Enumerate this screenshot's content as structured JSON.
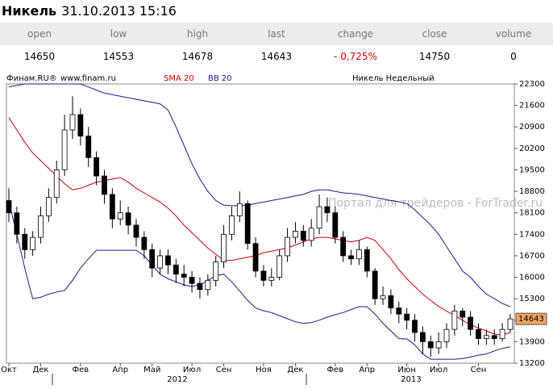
{
  "quote": {
    "title": "Никель",
    "datetime": "31.10.2013 15:16",
    "columns": [
      "open",
      "low",
      "high",
      "last",
      "change",
      "close",
      "volume"
    ],
    "values": [
      14650,
      14553,
      14678,
      14643,
      "- 0,725%",
      14750,
      0
    ]
  },
  "chart_data": {
    "type": "candlestick",
    "title": "Никель Недельный",
    "source": "Финам.RU®",
    "url": "www.finam.ru",
    "watermark": "Портал для трейдеров - ForTrader.ru",
    "years": [
      "2012",
      "2013"
    ],
    "categories": [
      "Окт",
      null,
      null,
      null,
      "Дек",
      null,
      null,
      null,
      null,
      "Фев",
      null,
      null,
      null,
      null,
      "Апр",
      null,
      null,
      null,
      "Май",
      null,
      null,
      null,
      null,
      "Июл",
      null,
      null,
      null,
      "Сен",
      null,
      null,
      null,
      null,
      "Ноя",
      null,
      null,
      null,
      "Дек",
      null,
      null,
      null,
      null,
      "Фев",
      null,
      null,
      null,
      "Апр",
      null,
      null,
      null,
      null,
      "Июн",
      null,
      null,
      null,
      "Июл",
      null,
      null,
      null,
      null,
      "Сен",
      null,
      null,
      null,
      null
    ],
    "open": [
      18500,
      18100,
      17400,
      16900,
      17300,
      18000,
      18600,
      19500,
      20800,
      21300,
      20600,
      19900,
      19300,
      18700,
      17900,
      18100,
      17700,
      17300,
      16900,
      16300,
      16700,
      16400,
      16100,
      16000,
      15800,
      15600,
      15900,
      16500,
      17400,
      18000,
      18400,
      17100,
      16200,
      15900,
      16000,
      16700,
      17300,
      17500,
      17200,
      17600,
      18300,
      18100,
      17300,
      16700,
      16600,
      16900,
      16200,
      15300,
      15400,
      15000,
      14800,
      14600,
      14200,
      13900,
      13700,
      13900,
      14300,
      14900,
      14700,
      14300,
      14000,
      14100,
      14000,
      14300
    ],
    "high": [
      18900,
      18300,
      17600,
      17500,
      18300,
      18900,
      19800,
      21300,
      21900,
      21500,
      20900,
      20100,
      19500,
      18900,
      18500,
      18300,
      17900,
      17500,
      17100,
      16900,
      16900,
      16600,
      16400,
      16200,
      16000,
      16100,
      16700,
      17700,
      18300,
      18800,
      18500,
      17300,
      16400,
      16300,
      16900,
      17600,
      17800,
      17700,
      17900,
      18700,
      18600,
      18300,
      17500,
      16900,
      17200,
      17000,
      16300,
      15700,
      15600,
      15200,
      15000,
      14800,
      14400,
      14100,
      14200,
      14500,
      15100,
      15000,
      14900,
      14500,
      14300,
      14300,
      14500,
      14800
    ],
    "low": [
      17800,
      17100,
      16600,
      16700,
      17100,
      17800,
      18400,
      19300,
      20500,
      20300,
      19600,
      19000,
      18400,
      17600,
      17700,
      17400,
      17000,
      16600,
      16000,
      16100,
      16100,
      15800,
      15700,
      15500,
      15300,
      15400,
      15700,
      16300,
      17200,
      17800,
      16900,
      16000,
      15700,
      15700,
      15900,
      16500,
      17100,
      17000,
      17000,
      17400,
      17800,
      17100,
      16500,
      16400,
      16400,
      16000,
      15100,
      15100,
      14800,
      14500,
      14300,
      13900,
      13500,
      13400,
      13500,
      13700,
      14100,
      14400,
      14100,
      13800,
      13800,
      13800,
      13900,
      14200
    ],
    "close": [
      18100,
      17400,
      16900,
      17300,
      18000,
      18600,
      19500,
      20800,
      21300,
      20600,
      19900,
      19300,
      18700,
      17900,
      18100,
      17700,
      17300,
      16900,
      16300,
      16700,
      16400,
      16100,
      16000,
      15800,
      15600,
      15900,
      16500,
      17400,
      18000,
      18400,
      17100,
      16200,
      15900,
      16000,
      16700,
      17300,
      17500,
      17200,
      17600,
      18300,
      18100,
      17300,
      16700,
      16600,
      16900,
      16200,
      15300,
      15400,
      15000,
      14800,
      14600,
      14200,
      13900,
      13700,
      13900,
      14300,
      14900,
      14700,
      14300,
      14000,
      14100,
      14000,
      14300,
      14643
    ],
    "overlays": [
      {
        "name": "SMA 20",
        "color": "#cc0000",
        "values": [
          21200,
          20800,
          20400,
          20050,
          19800,
          19550,
          19300,
          19050,
          18850,
          18900,
          19000,
          19100,
          19150,
          19200,
          19250,
          19100,
          18900,
          18750,
          18600,
          18450,
          18250,
          18000,
          17700,
          17450,
          17200,
          16950,
          16750,
          16550,
          16550,
          16600,
          16650,
          16700,
          16800,
          16850,
          16900,
          16950,
          17050,
          17150,
          17250,
          17300,
          17300,
          17250,
          17200,
          17150,
          17200,
          17300,
          17200,
          16900,
          16600,
          16250,
          15950,
          15700,
          15450,
          15250,
          15050,
          14900,
          14750,
          14600,
          14450,
          14350,
          14250,
          14150,
          14120,
          14200
        ]
      },
      {
        "name": "BB 20",
        "color": "#1a1a8c",
        "upper": [
          22200,
          22250,
          22300,
          22300,
          22300,
          22300,
          22300,
          22300,
          22300,
          22300,
          22200,
          22100,
          22000,
          21950,
          21900,
          21850,
          21800,
          21750,
          21700,
          21650,
          21450,
          20900,
          20300,
          19700,
          19200,
          18800,
          18500,
          18350,
          18330,
          18330,
          18350,
          18400,
          18450,
          18500,
          18550,
          18600,
          18650,
          18700,
          18800,
          18850,
          18850,
          18800,
          18750,
          18730,
          18700,
          18650,
          18600,
          18550,
          18500,
          18460,
          18400,
          18200,
          17950,
          17700,
          17400,
          17000,
          16600,
          16200,
          16000,
          15700,
          15450,
          15300,
          15150,
          15040
        ],
        "lower": [
          18460,
          17400,
          16300,
          15300,
          15350,
          15450,
          15520,
          15570,
          15900,
          16300,
          16600,
          16880,
          16880,
          16880,
          16880,
          16880,
          16880,
          16700,
          16400,
          16100,
          15950,
          15850,
          15750,
          15700,
          15750,
          15900,
          16050,
          16100,
          15850,
          15550,
          15250,
          15000,
          14910,
          14850,
          14750,
          14650,
          14550,
          14500,
          14520,
          14600,
          14700,
          14780,
          14850,
          14950,
          15040,
          15040,
          14800,
          14500,
          14250,
          14000,
          13990,
          13800,
          13500,
          13330,
          13330,
          13330,
          13330,
          13350,
          13400,
          13460,
          13500,
          13600,
          13680,
          13730
        ]
      }
    ],
    "last_color": "#f4a460",
    "ylim": [
      13200,
      22300
    ],
    "yticks": [
      13200,
      13900,
      14600,
      15300,
      16000,
      16700,
      17400,
      18100,
      18800,
      19500,
      20200,
      20900,
      21600,
      22300
    ]
  }
}
